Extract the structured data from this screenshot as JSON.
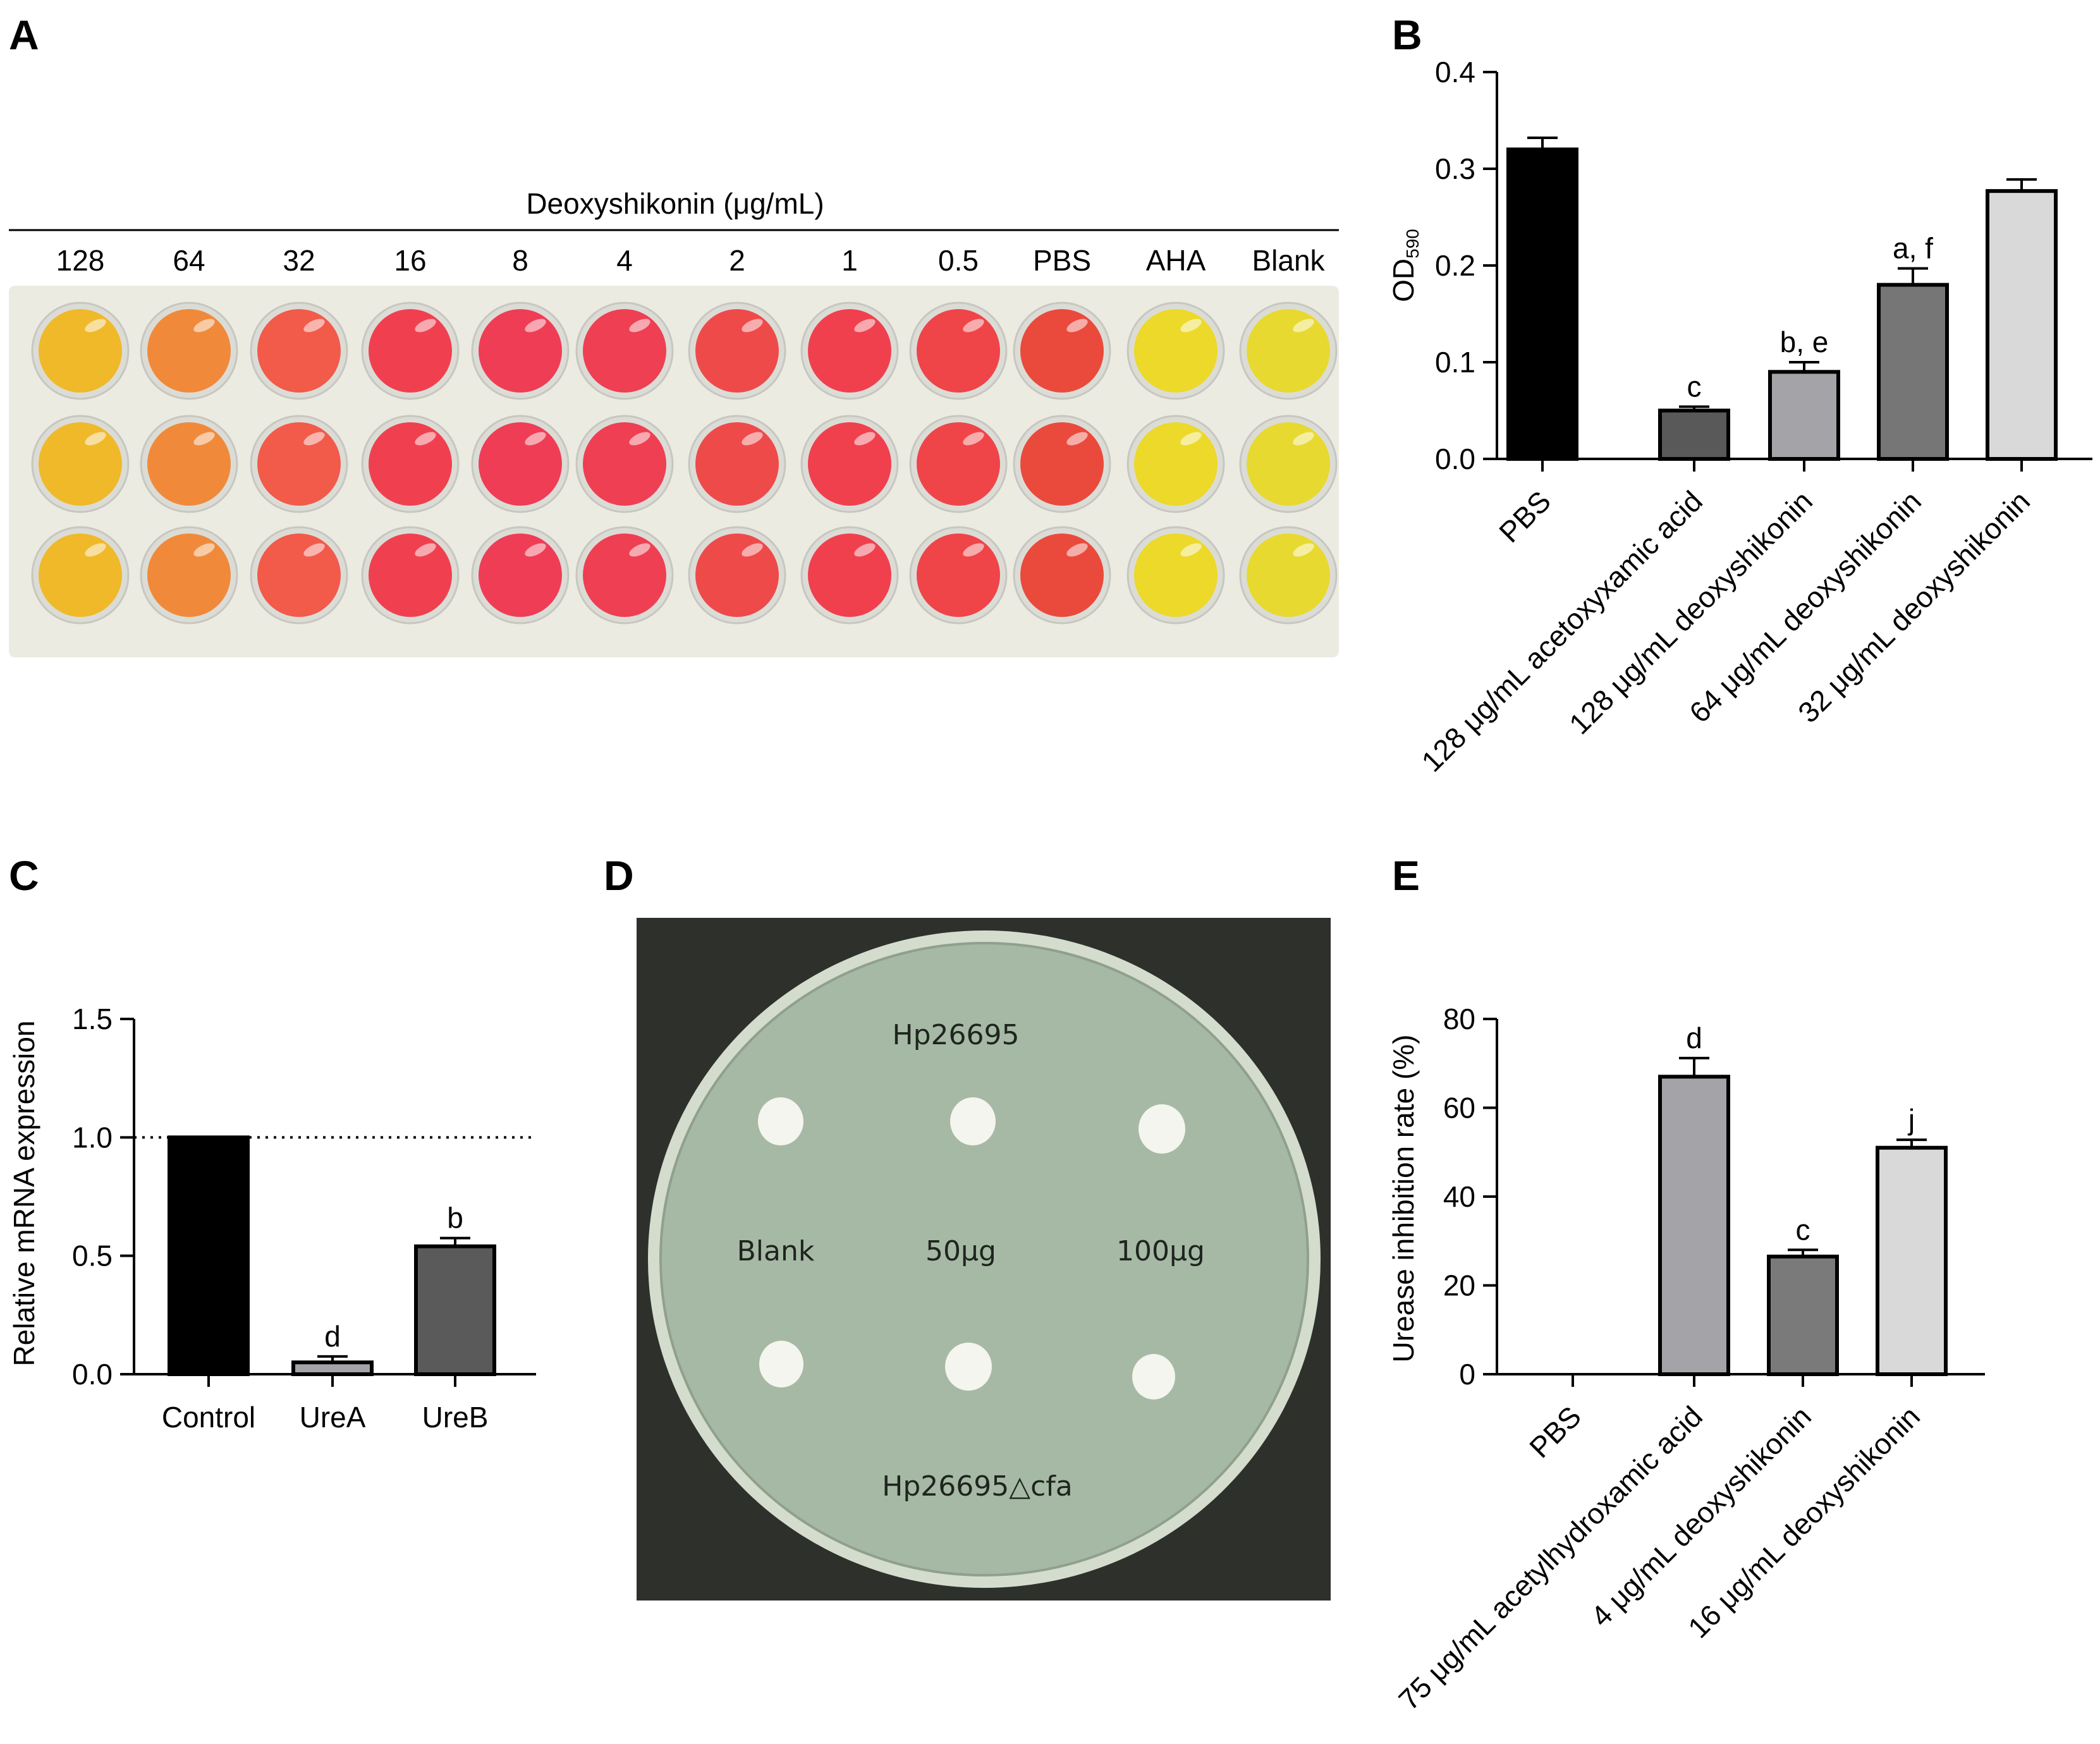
{
  "panels": {
    "a": {
      "letter": "A",
      "header": "Deoxyshikonin (μg/mL)",
      "columns": [
        "128",
        "64",
        "32",
        "16",
        "8",
        "4",
        "2",
        "1",
        "0.5",
        "PBS",
        "AHA",
        "Blank"
      ],
      "well_colors": [
        "#f0b92a",
        "#f08a3a",
        "#f25a4a",
        "#f0404f",
        "#ef3d55",
        "#ef3f52",
        "#ef4a4a",
        "#f0404e",
        "#ef4548",
        "#ea4a3c",
        "#ecd92a",
        "#e8d930"
      ],
      "plate_color": "#ecebe2"
    },
    "b": {
      "letter": "B"
    },
    "c": {
      "letter": "C"
    },
    "d": {
      "letter": "D",
      "labels": {
        "top_strain": "Hp26695",
        "bottom_strain": "Hp26695△cfa",
        "disc_blank": "Blank",
        "disc_50": "50μg",
        "disc_100": "100μg"
      },
      "colors": {
        "background": "#2e302b",
        "agar": "#a6b9a5",
        "rim": "#d4dccd",
        "disc": "#f4f5ee"
      }
    },
    "e": {
      "letter": "E"
    }
  },
  "chart_data": [
    {
      "id": "B",
      "type": "bar",
      "title": "",
      "xlabel": "",
      "ylabel": "OD590",
      "ylabel_parts": {
        "main": "OD",
        "sub": "590"
      },
      "ylim": [
        0,
        0.4
      ],
      "yticks": [
        "0.0",
        "0.1",
        "0.2",
        "0.3",
        "0.4"
      ],
      "categories": [
        "PBS",
        "128 μg/mL acetoxyxamic acid",
        "128 μg/mL deoxyshikonin",
        "64 μg/mL deoxyshikonin",
        "32 μg/mL deoxyshikonin"
      ],
      "values": [
        0.32,
        0.05,
        0.09,
        0.18,
        0.277
      ],
      "errors": [
        0.012,
        0.004,
        0.01,
        0.017,
        0.012
      ],
      "annotations": [
        "",
        "c",
        "b, e",
        "a, f",
        ""
      ],
      "colors": [
        "#000000",
        "#595959",
        "#a3a3a8",
        "#767676",
        "#d9d9d9"
      ],
      "grid": false,
      "legend": "none"
    },
    {
      "id": "C",
      "type": "bar",
      "title": "",
      "xlabel": "",
      "ylabel": "Relative mRNA expression",
      "ylim": [
        0,
        1.5
      ],
      "yticks": [
        "0.0",
        "0.5",
        "1.0",
        "1.5"
      ],
      "categories": [
        "Control",
        "UreA",
        "UreB"
      ],
      "values": [
        1.0,
        0.05,
        0.54
      ],
      "errors": [
        0,
        0.025,
        0.035
      ],
      "annotations": [
        "",
        "d",
        "b"
      ],
      "colors": [
        "#000000",
        "#a3a3a8",
        "#5a5a5a"
      ],
      "reference_line": 1.0,
      "grid": false,
      "legend": "none"
    },
    {
      "id": "E",
      "type": "bar",
      "title": "",
      "xlabel": "",
      "ylabel": "Urease inhibition rate (%)",
      "ylim": [
        0,
        80
      ],
      "yticks": [
        "0",
        "20",
        "40",
        "60",
        "80"
      ],
      "categories": [
        "PBS",
        "75 μg/mL acetylhydroxamic acid",
        "4 μg/mL deoxyshikonin",
        "16 μg/mL deoxyshikonin"
      ],
      "values": [
        0,
        67,
        26.5,
        51
      ],
      "errors": [
        0,
        4.2,
        1.5,
        1.8
      ],
      "annotations": [
        "",
        "d",
        "c",
        "j"
      ],
      "colors": [
        "#000000",
        "#a3a3a8",
        "#7a7a7a",
        "#d9d9d9"
      ],
      "grid": false,
      "legend": "none"
    }
  ]
}
